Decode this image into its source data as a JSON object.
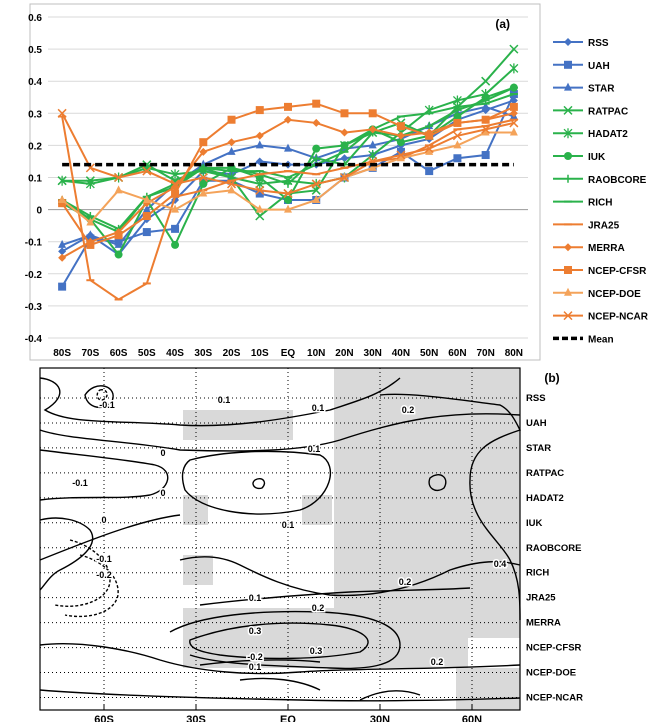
{
  "chart_data": [
    {
      "type": "line",
      "panel_label": "(a)",
      "categories": [
        "80S",
        "70S",
        "60S",
        "50S",
        "40S",
        "30S",
        "20S",
        "10S",
        "EQ",
        "10N",
        "20N",
        "30N",
        "40N",
        "50N",
        "60N",
        "70N",
        "80N"
      ],
      "ylim": [
        -0.4,
        0.6
      ],
      "yticks": [
        "-0.4",
        "-0.3",
        "-0.2",
        "-0.1",
        "0",
        "0.1",
        "0.2",
        "0.3",
        "0.4",
        "0.5",
        "0.6"
      ],
      "grid": "horizontal",
      "legend_position": "right",
      "series": [
        {
          "name": "RSS",
          "color": "#4472c4",
          "marker": "diamond",
          "values": [
            -0.13,
            -0.08,
            -0.14,
            -0.03,
            0.03,
            0.12,
            0.11,
            0.15,
            0.14,
            0.14,
            0.16,
            0.17,
            0.2,
            0.22,
            0.28,
            0.31,
            0.34
          ]
        },
        {
          "name": "UAH",
          "color": "#4472c4",
          "marker": "square",
          "values": [
            -0.24,
            -0.09,
            -0.1,
            -0.07,
            -0.06,
            0.09,
            0.09,
            0.05,
            0.03,
            0.03,
            0.1,
            0.13,
            0.18,
            0.12,
            0.16,
            0.17,
            0.36
          ]
        },
        {
          "name": "STAR",
          "color": "#4472c4",
          "marker": "triangle",
          "values": [
            -0.11,
            -0.08,
            -0.11,
            0.0,
            0.08,
            0.14,
            0.18,
            0.2,
            0.19,
            0.16,
            0.19,
            0.2,
            0.22,
            0.26,
            0.3,
            0.32,
            0.29
          ]
        },
        {
          "name": "RATPAC",
          "color": "#2ab24b",
          "marker": "x",
          "values": [
            0.09,
            0.09,
            0.1,
            0.14,
            0.09,
            0.13,
            0.1,
            -0.02,
            0.05,
            0.06,
            0.2,
            0.24,
            0.27,
            0.23,
            0.32,
            0.4,
            0.5
          ]
        },
        {
          "name": "HADAT2",
          "color": "#2ab24b",
          "marker": "star",
          "values": [
            0.09,
            0.08,
            0.1,
            0.13,
            0.11,
            0.12,
            0.1,
            0.08,
            0.09,
            0.08,
            0.1,
            0.17,
            0.24,
            0.31,
            0.34,
            0.36,
            0.44
          ]
        },
        {
          "name": "IUK",
          "color": "#2ab24b",
          "marker": "circle",
          "values": [
            0.02,
            -0.03,
            -0.14,
            0.03,
            -0.11,
            0.08,
            0.13,
            0.1,
            0.03,
            0.19,
            0.2,
            0.25,
            0.21,
            0.23,
            0.29,
            0.35,
            0.38
          ]
        },
        {
          "name": "RAOBCORE",
          "color": "#2ab24b",
          "marker": "plus",
          "values": [
            0.03,
            -0.02,
            -0.06,
            0.04,
            0.07,
            0.13,
            0.13,
            0.11,
            0.08,
            0.16,
            0.14,
            0.24,
            0.23,
            0.26,
            0.31,
            0.34,
            0.38
          ]
        },
        {
          "name": "RICH",
          "color": "#2ab24b",
          "marker": "dash",
          "values": [
            0.03,
            -0.03,
            -0.07,
            0.04,
            0.08,
            0.13,
            0.12,
            0.12,
            0.1,
            0.14,
            0.18,
            0.25,
            0.29,
            0.3,
            0.32,
            0.33,
            0.36
          ]
        },
        {
          "name": "JRA25",
          "color": "#ed7d31",
          "marker": "dash",
          "values": [
            0.29,
            -0.22,
            -0.28,
            -0.23,
            0.04,
            0.06,
            0.09,
            0.11,
            0.12,
            0.11,
            0.13,
            0.15,
            0.16,
            0.2,
            0.25,
            0.26,
            0.28
          ]
        },
        {
          "name": "MERRA",
          "color": "#ed7d31",
          "marker": "diamond",
          "values": [
            -0.15,
            -0.1,
            -0.07,
            0.02,
            0.07,
            0.18,
            0.21,
            0.23,
            0.28,
            0.27,
            0.24,
            0.25,
            0.23,
            0.24,
            0.27,
            0.28,
            0.3
          ]
        },
        {
          "name": "NCEP-CFSR",
          "color": "#ed7d31",
          "marker": "square",
          "values": [
            0.02,
            -0.11,
            -0.08,
            -0.02,
            0.05,
            0.21,
            0.28,
            0.31,
            0.32,
            0.33,
            0.3,
            0.3,
            0.26,
            0.23,
            0.27,
            0.28,
            0.32
          ]
        },
        {
          "name": "NCEP-DOE",
          "color": "#f4a35a",
          "marker": "triangle",
          "values": [
            0.03,
            -0.04,
            0.06,
            0.03,
            0.0,
            0.05,
            0.06,
            0.0,
            0.0,
            0.03,
            0.1,
            0.13,
            0.16,
            0.18,
            0.2,
            0.24,
            0.24
          ]
        },
        {
          "name": "NCEP-NCAR",
          "color": "#ed7d31",
          "marker": "x",
          "values": [
            0.3,
            0.13,
            0.1,
            0.12,
            0.08,
            0.1,
            0.08,
            0.06,
            0.05,
            0.08,
            0.1,
            0.15,
            0.17,
            0.19,
            0.23,
            0.25,
            0.27
          ]
        },
        {
          "name": "Mean",
          "color": "#000000",
          "marker": "none",
          "dashed": true,
          "values": [
            0.14,
            0.14,
            0.14,
            0.14,
            0.14,
            0.14,
            0.14,
            0.14,
            0.14,
            0.14,
            0.14,
            0.14,
            0.14,
            0.14,
            0.14,
            0.14,
            0.14
          ]
        }
      ]
    },
    {
      "type": "contour",
      "panel_label": "(b)",
      "x_ticks": [
        "60S",
        "30S",
        "EQ",
        "30N",
        "60N"
      ],
      "rows": [
        "RSS",
        "UAH",
        "STAR",
        "RATPAC",
        "HADAT2",
        "IUK",
        "RAOBCORE",
        "RICH",
        "JRA25",
        "MERRA",
        "NCEP-CFSR",
        "NCEP-DOE",
        "NCEP-NCAR"
      ],
      "contour_labels": [
        "-0.1",
        "0.1",
        "0.1",
        "0.2",
        "0",
        "0.1",
        "-0.1",
        "0",
        "0",
        "0.1",
        "-0.1",
        "-0.2",
        "0.2",
        "0.4",
        "0.1",
        "0.2",
        "0.3",
        "0.3",
        "-0.2",
        "0.1",
        "0.2"
      ],
      "shading": "significant regions shaded grey",
      "shade_color": "#d9d9d9"
    }
  ]
}
